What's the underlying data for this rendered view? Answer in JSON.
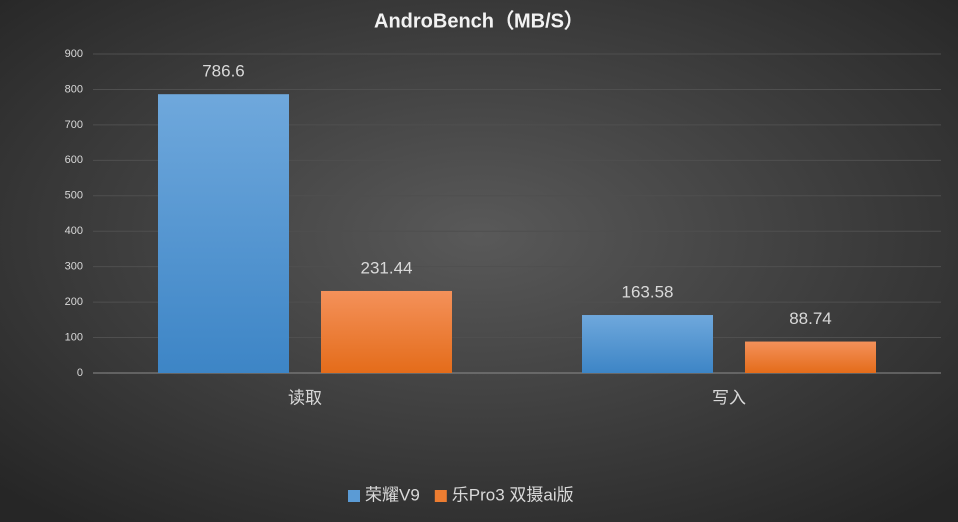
{
  "chart_data": {
    "type": "bar",
    "title": "AndroBench（MB/S）",
    "categories": [
      "读取",
      "写入"
    ],
    "series": [
      {
        "name": "荣耀V9",
        "color": "#5b9bd5",
        "values": [
          786.6,
          163.58
        ]
      },
      {
        "name": "乐Pro3 双摄ai版",
        "color": "#ed7d31",
        "values": [
          231.44,
          88.74
        ]
      }
    ],
    "ylim": [
      0,
      900
    ],
    "yticks": [
      0,
      100,
      200,
      300,
      400,
      500,
      600,
      700,
      800,
      900
    ],
    "grid": true,
    "legend": "bottom"
  }
}
